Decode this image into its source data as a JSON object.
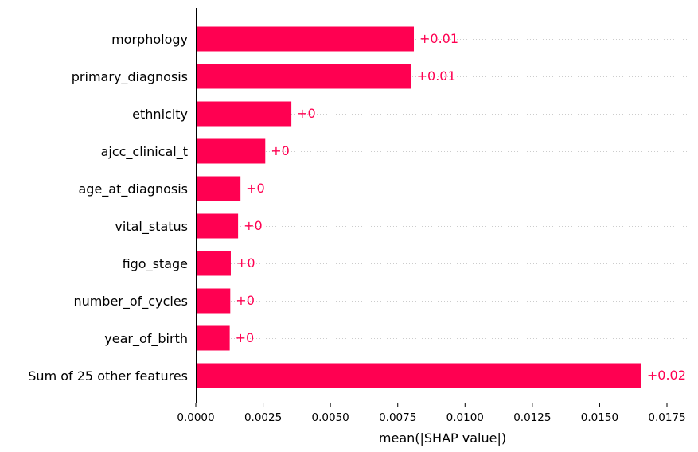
{
  "chart_data": {
    "type": "bar",
    "orientation": "horizontal",
    "categories": [
      "morphology",
      "primary_diagnosis",
      "ethnicity",
      "ajcc_clinical_t",
      "age_at_diagnosis",
      "vital_status",
      "figo_stage",
      "number_of_cycles",
      "year_of_birth",
      "Sum of 25 other features"
    ],
    "values": [
      0.0081,
      0.008,
      0.00355,
      0.00258,
      0.00166,
      0.00157,
      0.0013,
      0.00128,
      0.00126,
      0.01655
    ],
    "data_labels": [
      "+0.01",
      "+0.01",
      "+0",
      "+0",
      "+0",
      "+0",
      "+0",
      "+0",
      "+0",
      "+0.02"
    ],
    "xlabel": "mean(|SHAP value|)",
    "xlim": [
      0,
      0.0185
    ],
    "xticks": [
      0.0,
      0.0025,
      0.005,
      0.0075,
      0.01,
      0.0125,
      0.015,
      0.0175
    ],
    "xtick_labels": [
      "0.0000",
      "0.0025",
      "0.0050",
      "0.0075",
      "0.0100",
      "0.0125",
      "0.0150",
      "0.0175"
    ],
    "bar_color": "#ff0051",
    "label_color": "#ff0051",
    "grid": "horizontal dotted"
  }
}
